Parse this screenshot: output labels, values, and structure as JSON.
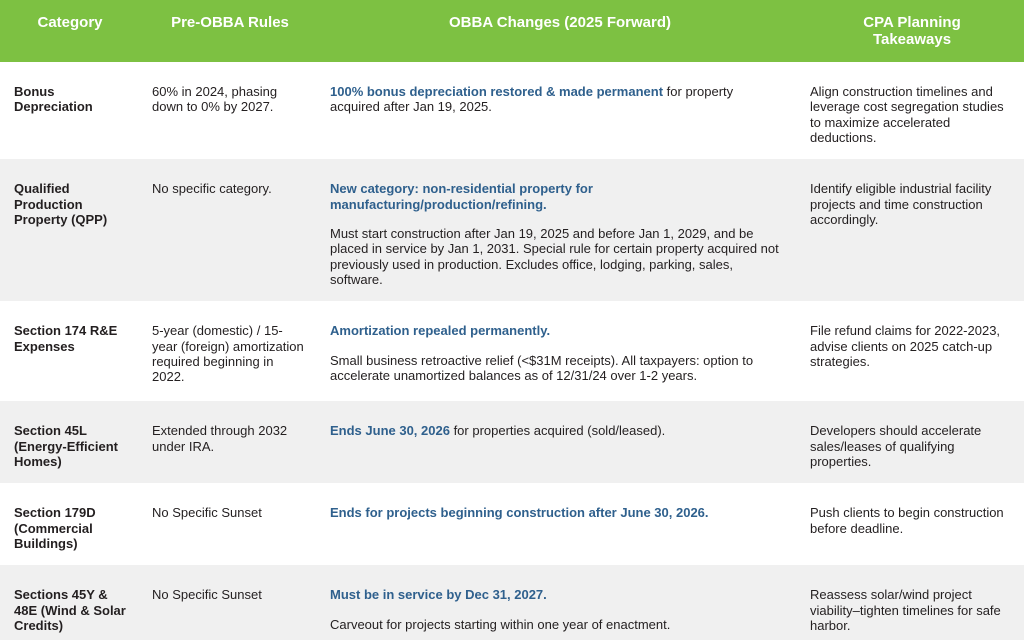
{
  "theme": {
    "header_bg": "#7DC142",
    "header_text": "#FFFFFF",
    "highlight_blue": "#2F608D",
    "body_text": "#231F20",
    "row_alt_bg": "#F0F0F0",
    "row_bg": "#FFFFFF"
  },
  "table": {
    "columns": [
      "Category",
      "Pre-OBBA Rules",
      "OBBA Changes (2025 Forward)",
      "CPA Planning Takeaways"
    ],
    "rows": [
      {
        "category": "Bonus Depreciation",
        "pre_obba": "60% in 2024, phasing down to 0% by 2027.",
        "obba": {
          "highlight": "100% bonus depreciation restored & made permanent",
          "inline_rest": " for property acquired after Jan 19, 2025.",
          "para2": ""
        },
        "cpa": "Align construction timelines and leverage cost segregation studies to maximize accelerated deductions."
      },
      {
        "category": "Qualified Production Property (QPP)",
        "pre_obba": "No specific category.",
        "obba": {
          "highlight": "New category: non-residential property for manufacturing/production/refining.",
          "inline_rest": "",
          "para2": "Must start construction after Jan 19, 2025 and before Jan 1, 2029, and be placed in service by Jan 1, 2031. Special rule for certain property acquired not previously used in production. Excludes office, lodging, parking, sales, software."
        },
        "cpa": "Identify eligible industrial facility projects and time construction accordingly."
      },
      {
        "category": "Section 174 R&E Expenses",
        "pre_obba": "5-year (domestic) / 15-year (foreign) amortization required beginning in 2022.",
        "obba": {
          "highlight": "Amortization repealed permanently.",
          "inline_rest": "",
          "para2": "Small business retroactive relief (<$31M receipts). All taxpayers: option to accelerate unamortized balances as of 12/31/24 over 1-2 years."
        },
        "cpa": "File refund claims for 2022-2023, advise clients on 2025 catch-up strategies."
      },
      {
        "category": "Section 45L (Energy-Efficient Homes)",
        "pre_obba": "Extended through 2032 under IRA.",
        "obba": {
          "highlight": "Ends June 30, 2026",
          "inline_rest": " for properties acquired (sold/leased).",
          "para2": ""
        },
        "cpa": "Developers should accelerate sales/leases of qualifying properties."
      },
      {
        "category": "Section 179D (Commercial Buildings)",
        "pre_obba": "No Specific Sunset",
        "obba": {
          "highlight": "Ends for projects beginning construction after June 30, 2026.",
          "inline_rest": "",
          "para2": ""
        },
        "cpa": "Push clients to begin construction before deadline."
      },
      {
        "category": "Sections 45Y & 48E (Wind & Solar Credits)",
        "pre_obba": "No Specific Sunset",
        "obba": {
          "highlight": "Must be in service by Dec 31, 2027.",
          "inline_rest": "",
          "para2": "Carveout for projects starting within one year of enactment."
        },
        "cpa": "Reassess solar/wind project viability–tighten timelines for safe harbor."
      }
    ]
  }
}
